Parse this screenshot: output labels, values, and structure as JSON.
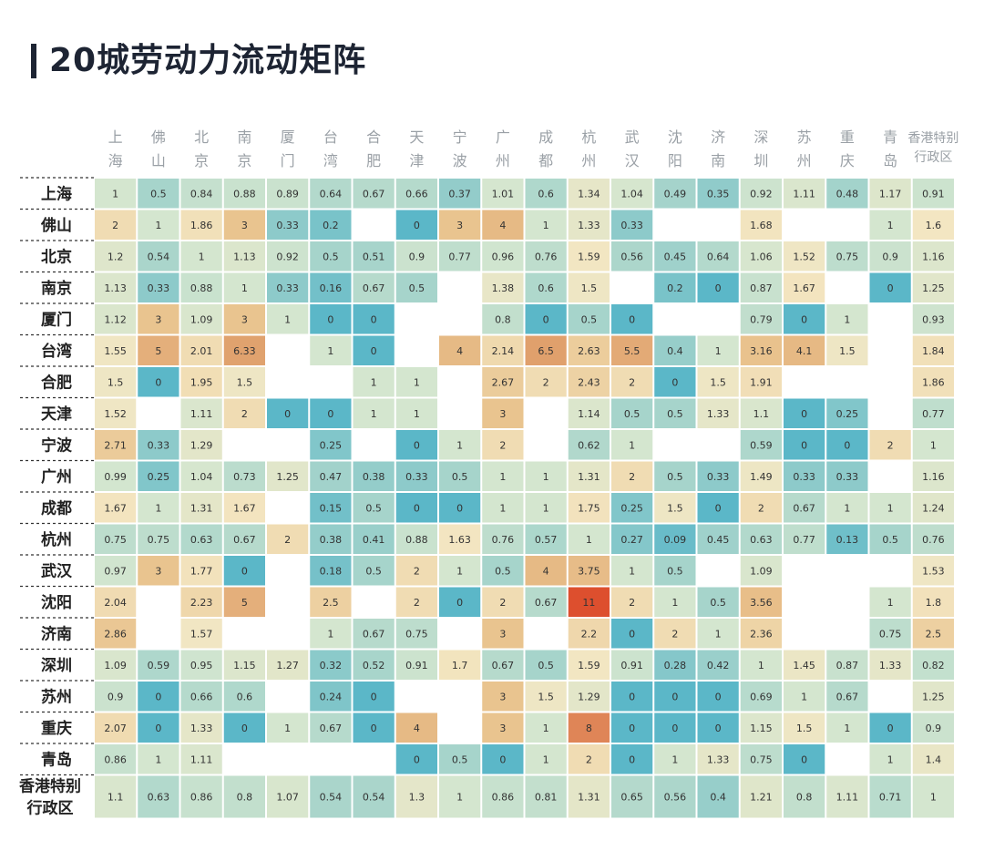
{
  "title": "20城劳动力流动矩阵",
  "chart_data": {
    "type": "heatmap",
    "title": "20城劳动力流动矩阵",
    "columns": [
      [
        "上",
        "海"
      ],
      [
        "佛",
        "山"
      ],
      [
        "北",
        "京"
      ],
      [
        "南",
        "京"
      ],
      [
        "厦",
        "门"
      ],
      [
        "台",
        "湾"
      ],
      [
        "合",
        "肥"
      ],
      [
        "天",
        "津"
      ],
      [
        "宁",
        "波"
      ],
      [
        "广",
        "州"
      ],
      [
        "成",
        "都"
      ],
      [
        "杭",
        "州"
      ],
      [
        "武",
        "汉"
      ],
      [
        "沈",
        "阳"
      ],
      [
        "济",
        "南"
      ],
      [
        "深",
        "圳"
      ],
      [
        "苏",
        "州"
      ],
      [
        "重",
        "庆"
      ],
      [
        "青",
        "岛"
      ],
      [
        "香港特别",
        "行政区"
      ]
    ],
    "rows": [
      [
        "上海"
      ],
      [
        "佛山"
      ],
      [
        "北京"
      ],
      [
        "南京"
      ],
      [
        "厦门"
      ],
      [
        "台湾"
      ],
      [
        "合肥"
      ],
      [
        "天津"
      ],
      [
        "宁波"
      ],
      [
        "广州"
      ],
      [
        "成都"
      ],
      [
        "杭州"
      ],
      [
        "武汉"
      ],
      [
        "沈阳"
      ],
      [
        "济南"
      ],
      [
        "深圳"
      ],
      [
        "苏州"
      ],
      [
        "重庆"
      ],
      [
        "青岛"
      ],
      [
        "香港特别",
        "行政区"
      ]
    ],
    "values": [
      [
        "1",
        "0.5",
        "0.84",
        "0.88",
        "0.89",
        "0.64",
        "0.67",
        "0.66",
        "0.37",
        "1.01",
        "0.6",
        "1.34",
        "1.04",
        "0.49",
        "0.35",
        "0.92",
        "1.11",
        "0.48",
        "1.17",
        "0.91"
      ],
      [
        "2",
        "1",
        "1.86",
        "3",
        "0.33",
        "0.2",
        "",
        "0",
        "3",
        "4",
        "1",
        "1.33",
        "0.33",
        "",
        "",
        "1.68",
        "",
        "",
        "1",
        "1.6"
      ],
      [
        "1.2",
        "0.54",
        "1",
        "1.13",
        "0.92",
        "0.5",
        "0.51",
        "0.9",
        "0.77",
        "0.96",
        "0.76",
        "1.59",
        "0.56",
        "0.45",
        "0.64",
        "1.06",
        "1.52",
        "0.75",
        "0.9",
        "1.16"
      ],
      [
        "1.13",
        "0.33",
        "0.88",
        "1",
        "0.33",
        "0.16",
        "0.67",
        "0.5",
        "",
        "1.38",
        "0.6",
        "1.5",
        "",
        "0.2",
        "0",
        "0.87",
        "1.67",
        "",
        "0",
        "1.25"
      ],
      [
        "1.12",
        "3",
        "1.09",
        "3",
        "1",
        "0",
        "0",
        "",
        "",
        "0.8",
        "0",
        "0.5",
        "0",
        "",
        "",
        "0.79",
        "0",
        "1",
        "",
        "0.93"
      ],
      [
        "1.55",
        "5",
        "2.01",
        "6.33",
        "",
        "1",
        "0",
        "",
        "4",
        "2.14",
        "6.5",
        "2.63",
        "5.5",
        "0.4",
        "1",
        "3.16",
        "4.1",
        "1.5",
        "",
        "1.84"
      ],
      [
        "1.5",
        "0",
        "1.95",
        "1.5",
        "",
        "",
        "1",
        "1",
        "",
        "2.67",
        "2",
        "2.43",
        "2",
        "0",
        "1.5",
        "1.91",
        "",
        "",
        "",
        "1.86"
      ],
      [
        "1.52",
        "",
        "1.11",
        "2",
        "0",
        "0",
        "1",
        "1",
        "",
        "3",
        "",
        "1.14",
        "0.5",
        "0.5",
        "1.33",
        "1.1",
        "0",
        "0.25",
        "",
        "0.77"
      ],
      [
        "2.71",
        "0.33",
        "1.29",
        "",
        "",
        "0.25",
        "",
        "0",
        "1",
        "2",
        "",
        "0.62",
        "1",
        "",
        "",
        "0.59",
        "0",
        "0",
        "2",
        "1"
      ],
      [
        "0.99",
        "0.25",
        "1.04",
        "0.73",
        "1.25",
        "0.47",
        "0.38",
        "0.33",
        "0.5",
        "1",
        "1",
        "1.31",
        "2",
        "0.5",
        "0.33",
        "1.49",
        "0.33",
        "0.33",
        "",
        "1.16"
      ],
      [
        "1.67",
        "1",
        "1.31",
        "1.67",
        "",
        "0.15",
        "0.5",
        "0",
        "0",
        "1",
        "1",
        "1.75",
        "0.25",
        "1.5",
        "0",
        "2",
        "0.67",
        "1",
        "1",
        "1.24"
      ],
      [
        "0.75",
        "0.75",
        "0.63",
        "0.67",
        "2",
        "0.38",
        "0.41",
        "0.88",
        "1.63",
        "0.76",
        "0.57",
        "1",
        "0.27",
        "0.09",
        "0.45",
        "0.63",
        "0.77",
        "0.13",
        "0.5",
        "0.76"
      ],
      [
        "0.97",
        "3",
        "1.77",
        "0",
        "",
        "0.18",
        "0.5",
        "2",
        "1",
        "0.5",
        "4",
        "3.75",
        "1",
        "0.5",
        "",
        "1.09",
        "",
        "",
        "",
        "1.53"
      ],
      [
        "2.04",
        "",
        "2.23",
        "5",
        "",
        "2.5",
        "",
        "2",
        "0",
        "2",
        "0.67",
        "11",
        "2",
        "1",
        "0.5",
        "3.56",
        "",
        "",
        "1",
        "1.8"
      ],
      [
        "2.86",
        "",
        "1.57",
        "",
        "",
        "1",
        "0.67",
        "0.75",
        "",
        "3",
        "",
        "2.2",
        "0",
        "2",
        "1",
        "2.36",
        "",
        "",
        "0.75",
        "2.5"
      ],
      [
        "1.09",
        "0.59",
        "0.95",
        "1.15",
        "1.27",
        "0.32",
        "0.52",
        "0.91",
        "1.7",
        "0.67",
        "0.5",
        "1.59",
        "0.91",
        "0.28",
        "0.42",
        "1",
        "1.45",
        "0.87",
        "1.33",
        "0.82"
      ],
      [
        "0.9",
        "0",
        "0.66",
        "0.6",
        "",
        "0.24",
        "0",
        "",
        "",
        "3",
        "1.5",
        "1.29",
        "0",
        "0",
        "0",
        "0.69",
        "1",
        "0.67",
        "",
        "1.25"
      ],
      [
        "2.07",
        "0",
        "1.33",
        "0",
        "1",
        "0.67",
        "0",
        "4",
        "",
        "3",
        "1",
        "8",
        "0",
        "0",
        "0",
        "1.15",
        "1.5",
        "1",
        "0",
        "0.9"
      ],
      [
        "0.86",
        "1",
        "1.11",
        "",
        "",
        "",
        "",
        "0",
        "0.5",
        "0",
        "1",
        "2",
        "0",
        "1",
        "1.33",
        "0.75",
        "0",
        "",
        "1",
        "1.4"
      ],
      [
        "1.1",
        "0.63",
        "0.86",
        "0.8",
        "1.07",
        "0.54",
        "0.54",
        "1.3",
        "1",
        "0.86",
        "0.81",
        "1.31",
        "0.65",
        "0.56",
        "0.4",
        "1.21",
        "0.8",
        "1.11",
        "0.71",
        "1"
      ]
    ],
    "color_scale": {
      "stops": [
        {
          "value": 0,
          "color": "#5bb7c8"
        },
        {
          "value": 0.5,
          "color": "#a6d4cb"
        },
        {
          "value": 1,
          "color": "#d4e6cf"
        },
        {
          "value": 1.6,
          "color": "#f3e6c2"
        },
        {
          "value": 3,
          "color": "#e9c48f"
        },
        {
          "value": 6.5,
          "color": "#e0a06c"
        },
        {
          "value": 11,
          "color": "#dd4f2e"
        }
      ],
      "empty_color": "#ffffff"
    }
  }
}
